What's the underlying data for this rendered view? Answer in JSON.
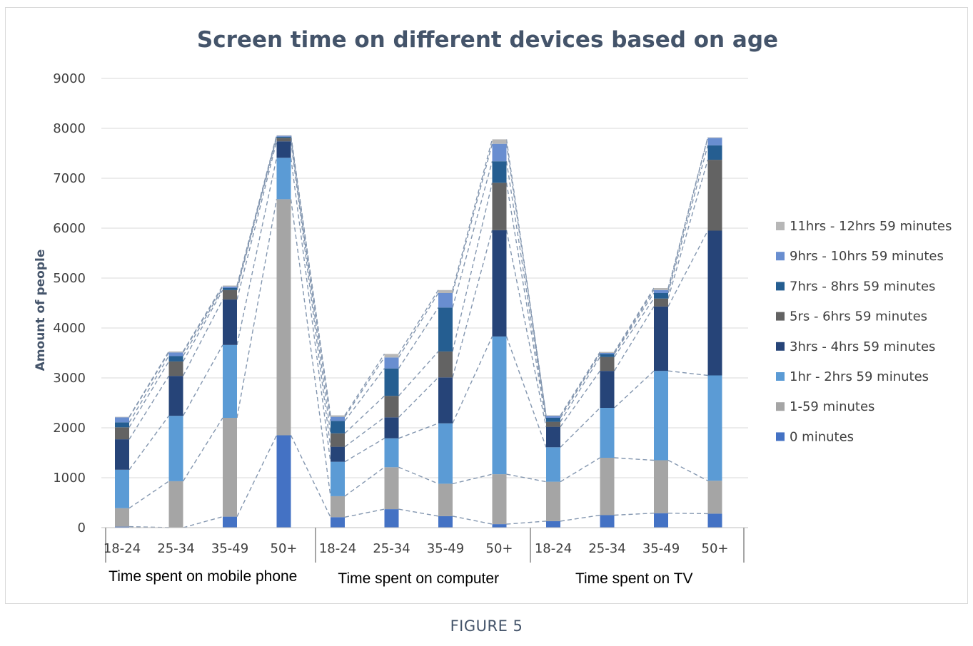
{
  "caption": "FIGURE 5",
  "chart_data": {
    "type": "bar",
    "stacked": true,
    "title": "Screen time on different devices based on age",
    "xlabel": "",
    "ylabel": "Amount of people",
    "ylim": [
      0,
      9000
    ],
    "yticks": [
      0,
      1000,
      2000,
      3000,
      4000,
      5000,
      6000,
      7000,
      8000,
      9000
    ],
    "grid": true,
    "legend_position": "right",
    "series_lines": "dashed",
    "groups": [
      {
        "label": "Time spent on mobile phone",
        "categories": [
          "18-24",
          "25-34",
          "35-49",
          "50+"
        ]
      },
      {
        "label": "Time spent on computer",
        "categories": [
          "18-24",
          "25-34",
          "35-49",
          "50+"
        ]
      },
      {
        "label": "Time spent on TV",
        "categories": [
          "18-24",
          "25-34",
          "35-49",
          "50+"
        ]
      }
    ],
    "series": [
      {
        "name": "0 minutes",
        "color": "#4472c4",
        "values": [
          20,
          0,
          220,
          1850,
          210,
          370,
          230,
          70,
          130,
          250,
          290,
          280
        ]
      },
      {
        "name": "1-59 minutes",
        "color": "#a5a5a5",
        "values": [
          370,
          930,
          1980,
          4730,
          420,
          840,
          650,
          1000,
          790,
          1150,
          1060,
          660
        ]
      },
      {
        "name": "1hr - 2hrs 59 minutes",
        "color": "#5b9bd5",
        "values": [
          770,
          1310,
          1460,
          830,
          690,
          580,
          1210,
          2760,
          690,
          1000,
          1790,
          2110
        ]
      },
      {
        "name": "3hrs - 4hrs 59 minutes",
        "color": "#264478",
        "values": [
          610,
          800,
          910,
          330,
          300,
          420,
          920,
          2130,
          410,
          740,
          1290,
          2900
        ]
      },
      {
        "name": "5rs - 6hrs 59 minutes",
        "color": "#636363",
        "values": [
          240,
          290,
          190,
          70,
          270,
          430,
          520,
          950,
          100,
          280,
          160,
          1420
        ]
      },
      {
        "name": "7hrs - 8hrs 59 minutes",
        "color": "#255e91",
        "values": [
          100,
          110,
          40,
          20,
          250,
          550,
          880,
          430,
          80,
          60,
          110,
          290
        ]
      },
      {
        "name": "9hrs - 10hrs 59 minutes",
        "color": "#698ed0",
        "values": [
          100,
          70,
          30,
          20,
          80,
          220,
          290,
          350,
          40,
          20,
          60,
          150
        ]
      },
      {
        "name": "11hrs - 12hrs 59 minutes",
        "color": "#b7b7b7",
        "values": [
          10,
          20,
          20,
          10,
          30,
          70,
          60,
          90,
          10,
          20,
          40,
          10
        ]
      }
    ]
  }
}
